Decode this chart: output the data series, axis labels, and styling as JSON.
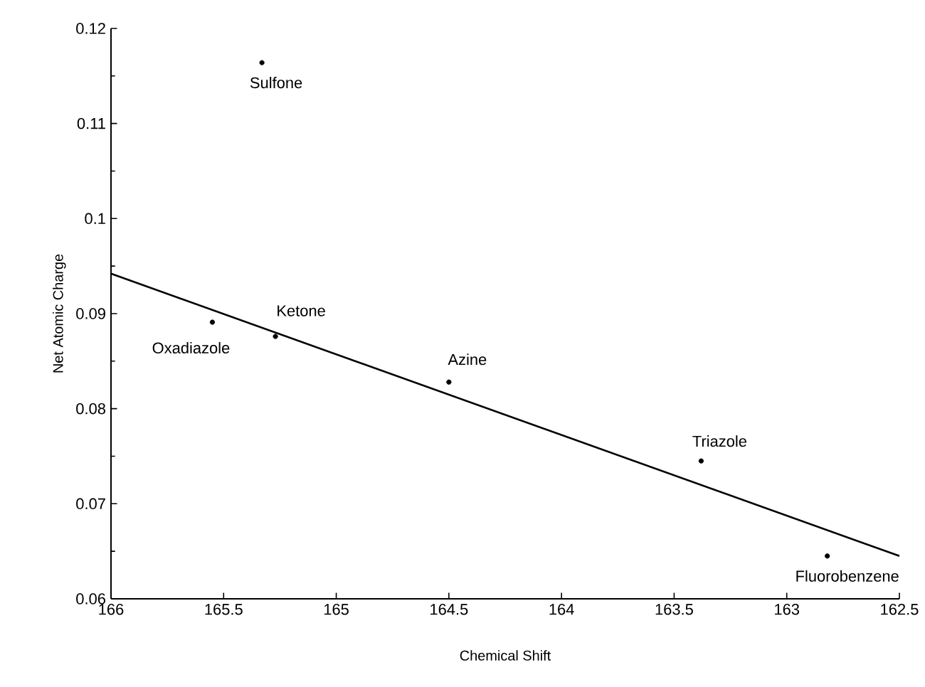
{
  "chart_data": {
    "type": "scatter",
    "xlabel": "Chemical Shift",
    "ylabel": "Net Atomic Charge",
    "xlim": [
      166,
      162.5
    ],
    "xticks": [
      166,
      165.5,
      165,
      164.5,
      164,
      163.5,
      163,
      162.5
    ],
    "ylim": [
      0.06,
      0.12
    ],
    "yticks": [
      0.06,
      0.07,
      0.08,
      0.09,
      0.1,
      0.11,
      0.12
    ],
    "grid": false,
    "legend": false,
    "series": [
      {
        "marker": "circle",
        "color": "#000000",
        "x": [
          165.33,
          165.55,
          165.27,
          164.5,
          163.38,
          162.82
        ],
        "values": [
          0.1164,
          0.0891,
          0.0876,
          0.0828,
          0.0745,
          0.0645
        ]
      },
      {
        "type": "line",
        "marker": "none",
        "color": "#000000",
        "x": [
          166,
          162.5
        ],
        "values": [
          0.0942,
          0.0645
        ]
      }
    ],
    "annotations": [
      {
        "text": "Sulfone",
        "x": 165.33,
        "y": 0.1164
      },
      {
        "text": "Oxadiazole",
        "x": 165.55,
        "y": 0.0891
      },
      {
        "text": "Ketone",
        "x": 165.27,
        "y": 0.0876
      },
      {
        "text": "Azine",
        "x": 164.5,
        "y": 0.0828
      },
      {
        "text": "Triazole",
        "x": 163.38,
        "y": 0.0745
      },
      {
        "text": "Fluorobenzene",
        "x": 162.82,
        "y": 0.0645
      }
    ]
  }
}
